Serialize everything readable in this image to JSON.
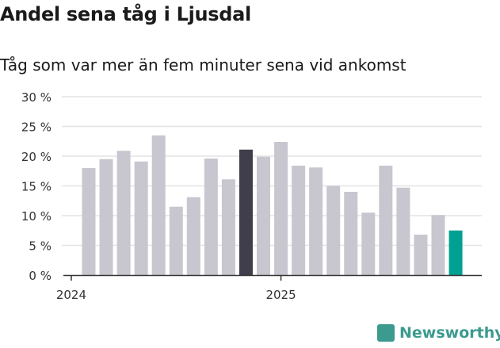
{
  "chart_data": {
    "type": "bar",
    "title": "Andel sena tåg i Ljusdal",
    "subtitle": "Tåg som var mer än fem minuter sena vid ankomst",
    "xlabel": "",
    "ylabel": "",
    "ylim": [
      0,
      30
    ],
    "yticks": [
      0,
      5,
      10,
      15,
      20,
      25,
      30
    ],
    "ytick_labels": [
      "0 %",
      "5 %",
      "10 %",
      "15 %",
      "20 %",
      "25 %",
      "30 %"
    ],
    "xtick_labels": [
      {
        "label": "2024",
        "index": -1
      },
      {
        "label": "2025",
        "index": 11
      }
    ],
    "categories": [
      "2024-02",
      "2024-03",
      "2024-04",
      "2024-05",
      "2024-06",
      "2024-07",
      "2024-08",
      "2024-09",
      "2024-10",
      "2024-11",
      "2024-12",
      "2025-01",
      "2025-02",
      "2025-03",
      "2025-04",
      "2025-05",
      "2025-06",
      "2025-07",
      "2025-08",
      "2025-09",
      "2025-10",
      "2025-11"
    ],
    "values": [
      18.0,
      19.5,
      20.9,
      19.1,
      23.5,
      11.5,
      13.1,
      19.6,
      16.1,
      21.1,
      19.9,
      22.4,
      18.4,
      18.1,
      15.0,
      14.0,
      10.5,
      18.4,
      14.7,
      6.8,
      10.1,
      7.5
    ],
    "highlight": {
      "9": "#403e4a",
      "21": "#00a093"
    },
    "colors": {
      "default": "#c8c7d0",
      "grid": "#e3e3e3",
      "axis": "#333333"
    },
    "grid": true
  },
  "brand": {
    "name": "Newsworthy"
  }
}
